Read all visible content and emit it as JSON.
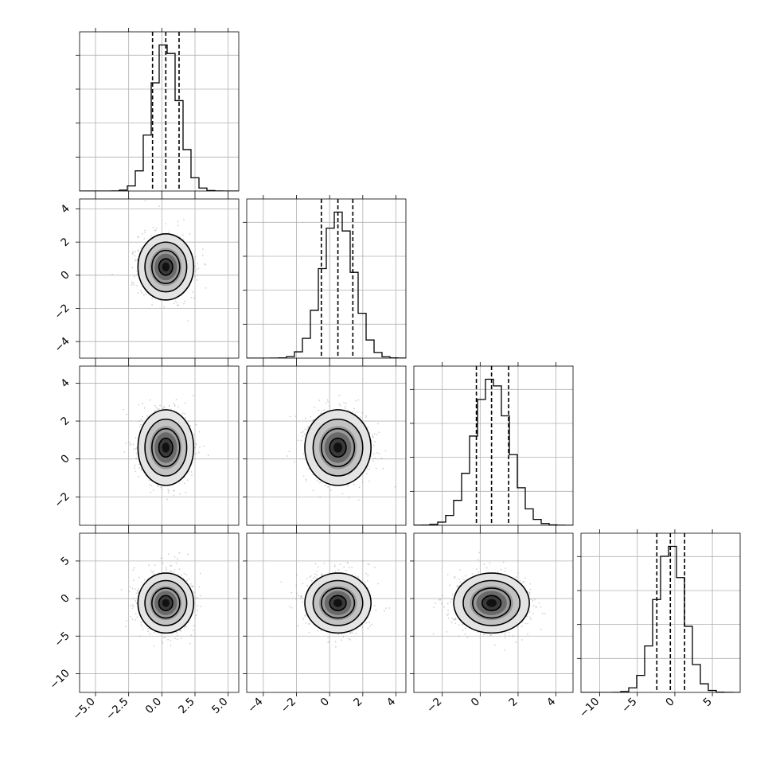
{
  "chart_data": {
    "type": "corner",
    "title": "",
    "parameters": [
      {
        "name": "",
        "range": [
          -6.2,
          5.8
        ],
        "ticks": [
          -5.0,
          -2.5,
          0.0,
          2.5,
          5.0
        ],
        "tick_labels": [
          "−5.0",
          "−2.5",
          "0.0",
          "2.5",
          "5.0"
        ],
        "mean": 0.3,
        "sigma": 1.0,
        "quantiles": [
          -0.7,
          0.3,
          1.3
        ]
      },
      {
        "name": "",
        "range": [
          -5.0,
          4.6
        ],
        "ticks": [
          -4,
          -2,
          0,
          2,
          4
        ],
        "tick_labels": [
          "−4",
          "−2",
          "0",
          "2",
          "4"
        ],
        "mean": 0.5,
        "sigma": 0.95,
        "quantiles": [
          -0.5,
          0.5,
          1.4
        ]
      },
      {
        "name": "",
        "range": [
          -3.5,
          4.9
        ],
        "ticks": [
          -2,
          0,
          2,
          4
        ],
        "tick_labels": [
          "−2",
          "0",
          "2",
          "4"
        ],
        "mean": 0.6,
        "sigma": 0.95,
        "quantiles": [
          -0.2,
          0.6,
          1.5
        ]
      },
      {
        "name": "",
        "range": [
          -12.5,
          8.7
        ],
        "ticks": [
          -10,
          -5,
          0,
          5
        ],
        "tick_labels": [
          "−10",
          "−5",
          "0",
          "5"
        ],
        "mean": -0.6,
        "sigma": 1.9,
        "quantiles": [
          -2.4,
          -0.6,
          1.3
        ]
      }
    ],
    "histogram_bins": 20,
    "contour_levels_sigma": [
      0.5,
      1.0,
      1.5,
      2.0
    ],
    "grid": true,
    "legend": "none"
  }
}
